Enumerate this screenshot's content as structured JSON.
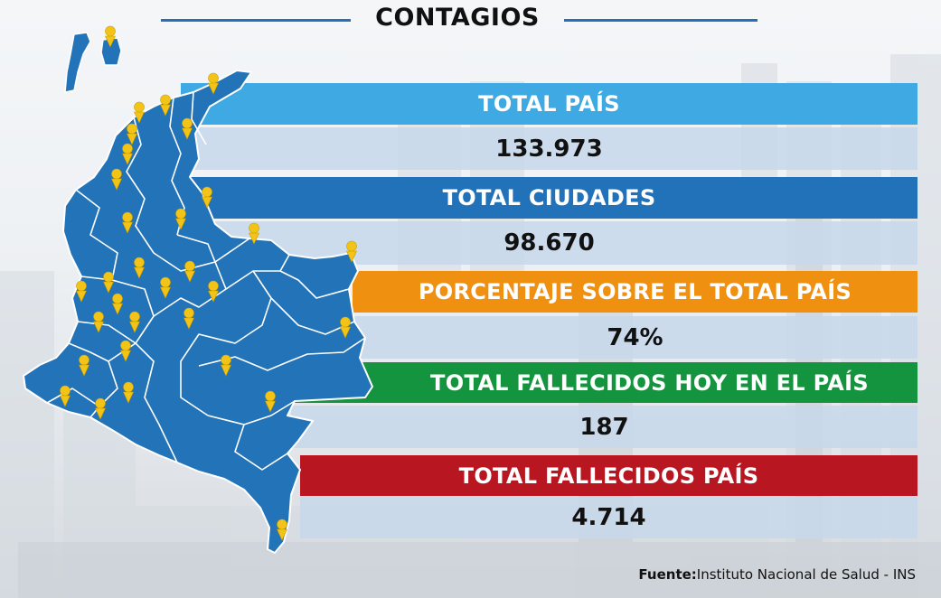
{
  "title": "CONTAGIOS",
  "rows": [
    {
      "label": "TOTAL PAÍS",
      "value": "133.973",
      "color": "#3ea9e3"
    },
    {
      "label": "TOTAL CIUDADES",
      "value": "98.670",
      "color": "#2272b9"
    },
    {
      "label": "PORCENTAJE SOBRE EL TOTAL PAÍS",
      "value": "74%",
      "color": "#ef9011"
    },
    {
      "label": "TOTAL FALLECIDOS HOY EN EL PAÍS",
      "value": "187",
      "color": "#15943f"
    },
    {
      "label": "TOTAL FALLECIDOS PAÍS",
      "value": "4.714",
      "color": "#b81721"
    }
  ],
  "source": {
    "prefix": "Fuente:",
    "text": "Instituto Nacional de Salud - INS"
  },
  "map": {
    "fill": "#2273b8",
    "pin_color": "#f2c417"
  }
}
